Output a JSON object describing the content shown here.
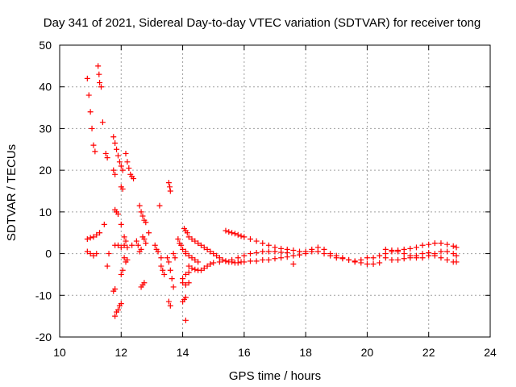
{
  "chart_data": {
    "type": "scatter",
    "title": "Day 341 of 2021, Sidereal Day-to-day VTEC variation (SDTVAR) for receiver tong",
    "xlabel": "GPS time / hours",
    "ylabel": "SDTVAR / TECUs",
    "xlim": [
      10,
      24
    ],
    "ylim": [
      -20,
      50
    ],
    "x_ticks": [
      10,
      12,
      14,
      16,
      18,
      20,
      22,
      24
    ],
    "y_ticks": [
      -20,
      -10,
      0,
      10,
      20,
      30,
      40,
      50
    ],
    "grid": true,
    "marker": "+",
    "marker_color": "#ff0000",
    "series": [
      {
        "name": "SDTVAR",
        "points": [
          [
            10.9,
            42.0
          ],
          [
            10.95,
            38.0
          ],
          [
            11.0,
            34.0
          ],
          [
            11.05,
            30.0
          ],
          [
            11.1,
            26.0
          ],
          [
            11.15,
            24.5
          ],
          [
            11.25,
            45.0
          ],
          [
            11.28,
            43.0
          ],
          [
            11.3,
            41.0
          ],
          [
            11.35,
            40.0
          ],
          [
            11.4,
            31.5
          ],
          [
            11.5,
            24.0
          ],
          [
            11.55,
            23.0
          ],
          [
            11.45,
            7.0
          ],
          [
            11.55,
            -3.0
          ],
          [
            11.6,
            0.0
          ],
          [
            10.9,
            3.5
          ],
          [
            11.0,
            3.8
          ],
          [
            11.1,
            4.0
          ],
          [
            11.2,
            4.5
          ],
          [
            11.3,
            5.0
          ],
          [
            10.9,
            0.5
          ],
          [
            11.0,
            0.0
          ],
          [
            11.1,
            -0.5
          ],
          [
            11.2,
            0.0
          ],
          [
            11.75,
            28.0
          ],
          [
            11.8,
            26.5
          ],
          [
            11.85,
            25.0
          ],
          [
            11.9,
            23.5
          ],
          [
            11.95,
            22.0
          ],
          [
            12.0,
            21.0
          ],
          [
            12.05,
            20.0
          ],
          [
            11.75,
            20.0
          ],
          [
            11.8,
            19.0
          ],
          [
            12.0,
            16.0
          ],
          [
            12.05,
            15.5
          ],
          [
            12.15,
            24.0
          ],
          [
            12.2,
            22.0
          ],
          [
            12.25,
            20.5
          ],
          [
            12.3,
            19.0
          ],
          [
            12.35,
            18.5
          ],
          [
            12.4,
            18.0
          ],
          [
            11.8,
            10.5
          ],
          [
            11.85,
            10.0
          ],
          [
            11.9,
            9.5
          ],
          [
            12.0,
            7.0
          ],
          [
            12.1,
            4.0
          ],
          [
            12.15,
            3.0
          ],
          [
            11.8,
            2.0
          ],
          [
            11.9,
            2.0
          ],
          [
            12.0,
            1.5
          ],
          [
            12.1,
            2.0
          ],
          [
            12.2,
            1.5
          ],
          [
            12.35,
            2.0
          ],
          [
            12.1,
            -1.0
          ],
          [
            12.15,
            -2.0
          ],
          [
            12.2,
            -1.5
          ],
          [
            12.0,
            -5.0
          ],
          [
            12.05,
            -4.0
          ],
          [
            11.75,
            -9.0
          ],
          [
            11.8,
            -8.5
          ],
          [
            11.8,
            -15.0
          ],
          [
            11.85,
            -14.0
          ],
          [
            11.9,
            -13.5
          ],
          [
            11.95,
            -12.5
          ],
          [
            12.0,
            -12.0
          ],
          [
            12.6,
            11.5
          ],
          [
            12.65,
            10.0
          ],
          [
            12.7,
            9.0
          ],
          [
            12.75,
            8.0
          ],
          [
            12.8,
            7.5
          ],
          [
            12.5,
            3.0
          ],
          [
            12.55,
            2.0
          ],
          [
            12.7,
            4.0
          ],
          [
            12.75,
            3.5
          ],
          [
            12.8,
            2.5
          ],
          [
            12.9,
            5.0
          ],
          [
            12.6,
            0.5
          ],
          [
            12.65,
            1.0
          ],
          [
            12.65,
            -8.0
          ],
          [
            12.7,
            -7.5
          ],
          [
            12.75,
            -7.0
          ],
          [
            13.1,
            2.0
          ],
          [
            13.15,
            1.0
          ],
          [
            13.2,
            0.5
          ],
          [
            13.3,
            -1.0
          ],
          [
            13.3,
            -3.0
          ],
          [
            13.4,
            -5.0
          ],
          [
            13.35,
            -4.0
          ],
          [
            13.25,
            11.5
          ],
          [
            13.55,
            17.0
          ],
          [
            13.58,
            16.0
          ],
          [
            13.6,
            15.0
          ],
          [
            13.5,
            -1.0
          ],
          [
            13.55,
            -2.0
          ],
          [
            13.6,
            -4.0
          ],
          [
            13.65,
            -6.0
          ],
          [
            13.7,
            -8.0
          ],
          [
            13.55,
            -11.5
          ],
          [
            13.6,
            -12.5
          ],
          [
            13.7,
            0.0
          ],
          [
            13.75,
            -1.0
          ],
          [
            13.85,
            3.5
          ],
          [
            13.9,
            2.5
          ],
          [
            13.95,
            2.0
          ],
          [
            14.0,
            1.0
          ],
          [
            14.1,
            0.5
          ],
          [
            14.05,
            6.0
          ],
          [
            14.1,
            5.5
          ],
          [
            14.15,
            5.0
          ],
          [
            14.0,
            -11.5
          ],
          [
            14.05,
            -11.0
          ],
          [
            14.1,
            -10.5
          ],
          [
            14.1,
            -16.0
          ],
          [
            14.0,
            -7.0
          ],
          [
            14.1,
            -7.5
          ],
          [
            14.2,
            -7.0
          ],
          [
            14.2,
            4.0
          ],
          [
            14.3,
            3.5
          ],
          [
            14.4,
            3.0
          ],
          [
            14.5,
            2.5
          ],
          [
            14.6,
            2.0
          ],
          [
            14.7,
            1.5
          ],
          [
            14.8,
            1.0
          ],
          [
            14.9,
            0.5
          ],
          [
            15.0,
            0.0
          ],
          [
            15.1,
            -0.5
          ],
          [
            15.2,
            -1.0
          ],
          [
            15.3,
            -1.5
          ],
          [
            15.4,
            -1.8
          ],
          [
            15.5,
            -2.0
          ],
          [
            15.6,
            -2.0
          ],
          [
            15.7,
            -2.2
          ],
          [
            15.8,
            -2.2
          ],
          [
            15.9,
            -2.0
          ],
          [
            16.0,
            -2.0
          ],
          [
            16.2,
            -1.8
          ],
          [
            16.4,
            -1.8
          ],
          [
            16.6,
            -1.5
          ],
          [
            16.8,
            -1.5
          ],
          [
            17.0,
            -1.2
          ],
          [
            17.2,
            -1.0
          ],
          [
            17.4,
            -0.8
          ],
          [
            17.6,
            -0.5
          ],
          [
            17.8,
            -0.3
          ],
          [
            18.0,
            0.0
          ],
          [
            14.2,
            -3.0
          ],
          [
            14.3,
            -3.5
          ],
          [
            14.4,
            -3.8
          ],
          [
            14.5,
            -4.0
          ],
          [
            14.6,
            -4.0
          ],
          [
            14.7,
            -3.5
          ],
          [
            14.8,
            -3.0
          ],
          [
            14.9,
            -2.5
          ],
          [
            15.0,
            -2.2
          ],
          [
            15.2,
            -2.0
          ],
          [
            15.4,
            -1.8
          ],
          [
            15.6,
            -1.5
          ],
          [
            15.8,
            -1.0
          ],
          [
            16.0,
            -0.5
          ],
          [
            16.2,
            0.0
          ],
          [
            16.4,
            0.2
          ],
          [
            16.6,
            0.5
          ],
          [
            16.8,
            0.5
          ],
          [
            17.0,
            0.5
          ],
          [
            17.2,
            0.3
          ],
          [
            17.4,
            0.2
          ],
          [
            17.6,
            -2.5
          ],
          [
            14.0,
            -6.0
          ],
          [
            14.1,
            -5.0
          ],
          [
            14.2,
            -4.5
          ],
          [
            14.1,
            0.0
          ],
          [
            14.2,
            -0.5
          ],
          [
            14.3,
            -1.0
          ],
          [
            14.4,
            -1.5
          ],
          [
            14.5,
            -2.0
          ],
          [
            15.4,
            5.5
          ],
          [
            15.5,
            5.2
          ],
          [
            15.6,
            5.0
          ],
          [
            15.7,
            4.8
          ],
          [
            15.8,
            4.5
          ],
          [
            15.9,
            4.2
          ],
          [
            16.0,
            4.0
          ],
          [
            16.2,
            3.5
          ],
          [
            16.4,
            3.0
          ],
          [
            16.6,
            2.5
          ],
          [
            16.8,
            2.0
          ],
          [
            17.0,
            1.5
          ],
          [
            17.2,
            1.2
          ],
          [
            17.4,
            1.0
          ],
          [
            17.6,
            0.8
          ],
          [
            17.8,
            0.5
          ],
          [
            18.0,
            0.5
          ],
          [
            18.2,
            0.5
          ],
          [
            18.4,
            0.5
          ],
          [
            18.6,
            0.0
          ],
          [
            18.8,
            -0.5
          ],
          [
            19.0,
            -1.0
          ],
          [
            19.2,
            -1.2
          ],
          [
            19.4,
            -1.5
          ],
          [
            19.6,
            -2.0
          ],
          [
            19.8,
            -2.2
          ],
          [
            20.0,
            -2.5
          ],
          [
            20.2,
            -2.5
          ],
          [
            20.4,
            -2.2
          ],
          [
            18.2,
            1.0
          ],
          [
            18.4,
            1.5
          ],
          [
            18.6,
            1.0
          ],
          [
            18.8,
            0.0
          ],
          [
            19.0,
            -0.5
          ],
          [
            19.2,
            -1.0
          ],
          [
            19.4,
            -1.5
          ],
          [
            19.6,
            -1.8
          ],
          [
            19.8,
            -1.5
          ],
          [
            20.0,
            -1.0
          ],
          [
            20.2,
            -1.0
          ],
          [
            20.4,
            -0.5
          ],
          [
            20.6,
            0.0
          ],
          [
            20.8,
            0.5
          ],
          [
            21.0,
            0.8
          ],
          [
            21.2,
            1.0
          ],
          [
            21.4,
            1.2
          ],
          [
            21.6,
            1.5
          ],
          [
            21.8,
            2.0
          ],
          [
            22.0,
            2.2
          ],
          [
            22.2,
            2.5
          ],
          [
            22.4,
            2.5
          ],
          [
            22.6,
            2.2
          ],
          [
            22.8,
            1.8
          ],
          [
            22.9,
            1.5
          ],
          [
            20.6,
            -1.0
          ],
          [
            20.8,
            -1.5
          ],
          [
            21.0,
            -1.5
          ],
          [
            21.2,
            -1.2
          ],
          [
            21.4,
            -1.0
          ],
          [
            21.6,
            -0.5
          ],
          [
            21.8,
            0.0
          ],
          [
            22.0,
            0.2
          ],
          [
            22.2,
            -0.5
          ],
          [
            22.4,
            -1.0
          ],
          [
            22.6,
            -1.5
          ],
          [
            22.8,
            -2.0
          ],
          [
            22.9,
            -2.0
          ],
          [
            20.6,
            1.0
          ],
          [
            20.8,
            0.8
          ],
          [
            21.0,
            0.5
          ],
          [
            21.2,
            0.0
          ],
          [
            21.4,
            -0.5
          ],
          [
            21.6,
            -1.0
          ],
          [
            21.8,
            -1.0
          ],
          [
            22.0,
            -0.5
          ],
          [
            22.2,
            0.0
          ],
          [
            22.4,
            0.5
          ],
          [
            22.6,
            0.5
          ],
          [
            22.8,
            0.0
          ],
          [
            22.9,
            -0.5
          ]
        ]
      }
    ]
  }
}
